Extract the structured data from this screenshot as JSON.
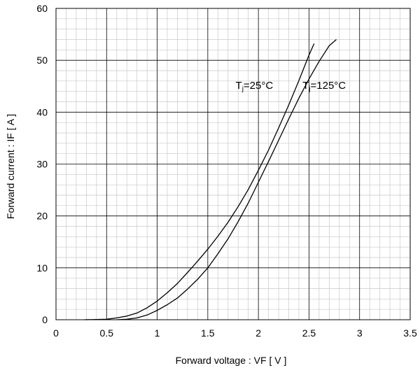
{
  "chart_data": {
    "type": "line",
    "title": "",
    "xlabel": "Forward voltage  :  VF [ V ]",
    "ylabel": "Forward current : IF [ A ]",
    "xlim": [
      0,
      3.5
    ],
    "ylim": [
      0,
      60
    ],
    "x_ticks": [
      "0",
      "0.5",
      "1",
      "1.5",
      "2",
      "2.5",
      "3",
      "3.5"
    ],
    "y_ticks": [
      "0",
      "10",
      "20",
      "30",
      "40",
      "50",
      "60"
    ],
    "x_minor_step": 0.1,
    "y_minor_step": 2,
    "grid": true,
    "legend": "none",
    "series": [
      {
        "name": "Tj=25°C",
        "x": [
          0.28,
          0.5,
          0.6,
          0.7,
          0.8,
          0.9,
          1.0,
          1.1,
          1.2,
          1.3,
          1.4,
          1.5,
          1.6,
          1.7,
          1.8,
          1.9,
          2.0,
          2.1,
          2.2,
          2.3,
          2.4,
          2.5,
          2.55
        ],
        "y": [
          0.0,
          0.1,
          0.35,
          0.7,
          1.3,
          2.3,
          3.6,
          5.2,
          7.0,
          9.1,
          11.3,
          13.6,
          16.1,
          18.8,
          21.8,
          25.1,
          28.8,
          32.7,
          37.0,
          41.4,
          46.1,
          51.0,
          53.2
        ]
      },
      {
        "name": "Tj=125°C",
        "x": [
          0.6,
          0.7,
          0.8,
          0.9,
          1.0,
          1.1,
          1.2,
          1.3,
          1.4,
          1.5,
          1.6,
          1.7,
          1.8,
          1.9,
          2.0,
          2.1,
          2.2,
          2.3,
          2.4,
          2.5,
          2.6,
          2.7,
          2.77
        ],
        "y": [
          0.0,
          0.1,
          0.35,
          0.9,
          1.8,
          2.9,
          4.2,
          5.9,
          7.8,
          10.0,
          12.7,
          15.6,
          18.9,
          22.5,
          26.5,
          30.5,
          34.6,
          38.7,
          42.7,
          46.4,
          49.8,
          52.8,
          54.0
        ]
      }
    ],
    "annotations": [
      {
        "main": "T",
        "sub": "j",
        "rest": "=25°C",
        "x": 1.96,
        "y": 44.5
      },
      {
        "main": "T",
        "sub": "j",
        "rest": "=125°C",
        "x": 2.65,
        "y": 44.5
      }
    ]
  }
}
